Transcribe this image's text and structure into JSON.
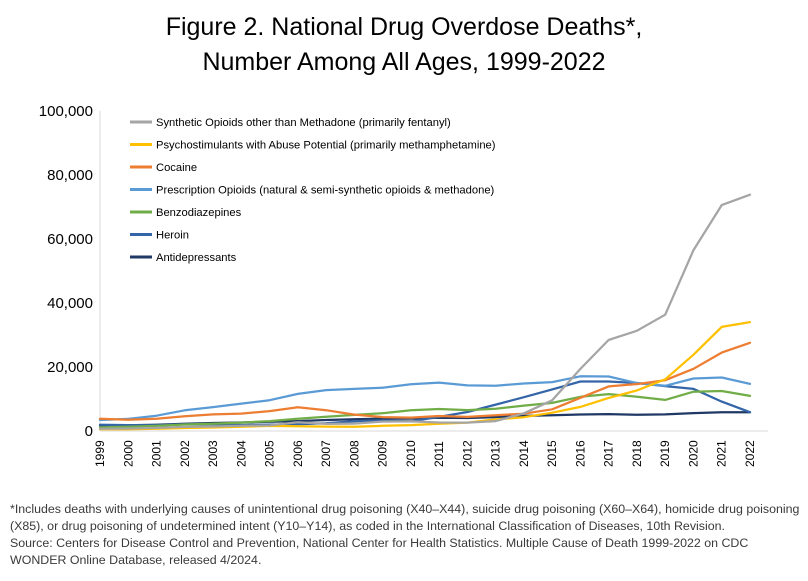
{
  "title": {
    "line1": "Figure 2. National Drug Overdose Deaths*,",
    "line2": "Number Among All Ages, 1999-2022"
  },
  "footnote": {
    "para1": "*Includes deaths with underlying causes of unintentional drug poisoning (X40–X44), suicide drug poisoning (X60–X64), homicide drug poisoning (X85), or drug poisoning of undetermined intent (Y10–Y14), as coded in the International Classification of Diseases, 10th Revision.",
    "para2": "Source: Centers for Disease Control and Prevention, National Center for Health Statistics. Multiple Cause of Death 1999-2022 on CDC WONDER Online Database, released 4/2024."
  },
  "chart_data": {
    "type": "line",
    "title": "Figure 2. National Drug Overdose Deaths*, Number Among All Ages, 1999-2022",
    "xlabel": "",
    "ylabel": "",
    "ylim": [
      0,
      100000
    ],
    "yticks": [
      0,
      20000,
      40000,
      60000,
      80000,
      100000
    ],
    "ytick_labels": [
      "0",
      "20,000",
      "40,000",
      "60,000",
      "80,000",
      "100,000"
    ],
    "grid": false,
    "legend_position": "inside-top-left",
    "axis_color": "#d9d9d9",
    "x": [
      1999,
      2000,
      2001,
      2002,
      2003,
      2004,
      2005,
      2006,
      2007,
      2008,
      2009,
      2010,
      2011,
      2012,
      2013,
      2014,
      2015,
      2016,
      2017,
      2018,
      2019,
      2020,
      2021,
      2022
    ],
    "series": [
      {
        "id": "synthetic-opioids",
        "name": "Synthetic Opioids other than Methadone (primarily fentanyl)",
        "color": "#a5a5a5",
        "values": [
          730,
          782,
          957,
          1295,
          1400,
          1664,
          1742,
          2707,
          2213,
          2306,
          2946,
          3007,
          2666,
          2628,
          3105,
          5544,
          9580,
          19413,
          28466,
          31335,
          36359,
          56516,
          70601,
          73838
        ]
      },
      {
        "id": "psychostimulants",
        "name": "Psychostimulants with Abuse Potential (primarily methamphetamine)",
        "color": "#ffc000",
        "values": [
          547,
          578,
          676,
          941,
          1101,
          1305,
          1608,
          1462,
          1378,
          1302,
          1632,
          1854,
          2266,
          2635,
          3627,
          4298,
          5716,
          7542,
          10333,
          12676,
          16167,
          23837,
          32537,
          34022
        ]
      },
      {
        "id": "cocaine",
        "name": "Cocaine",
        "color": "#ed7d31",
        "values": [
          3822,
          3544,
          3833,
          4599,
          5199,
          5443,
          6208,
          7448,
          6512,
          5129,
          4350,
          4183,
          4681,
          4404,
          4944,
          5415,
          6784,
          10375,
          13942,
          14666,
          15883,
          19447,
          24486,
          27569
        ]
      },
      {
        "id": "prescription-opioids",
        "name": "Prescription Opioids (natural & semi-synthetic opioids & methadone)",
        "color": "#5b9bd5",
        "values": [
          3442,
          3785,
          4770,
          6483,
          7461,
          8577,
          9612,
          11589,
          12796,
          13149,
          13523,
          14583,
          15140,
          14240,
          14145,
          14838,
          15281,
          17087,
          17029,
          14975,
          14139,
          16416,
          16706,
          14716
        ]
      },
      {
        "id": "benzodiazepines",
        "name": "Benzodiazepines",
        "color": "#70ad47",
        "values": [
          1135,
          1298,
          1594,
          2022,
          2248,
          2627,
          3084,
          3805,
          4441,
          5017,
          5567,
          6497,
          6872,
          6524,
          6973,
          7945,
          8791,
          10684,
          11537,
          10724,
          9711,
          12290,
          12499,
          10964
        ]
      },
      {
        "id": "heroin",
        "name": "Heroin",
        "color": "#3465a8",
        "values": [
          1960,
          1842,
          1779,
          2089,
          2080,
          1878,
          2009,
          2088,
          2399,
          3041,
          3278,
          3036,
          4397,
          5925,
          8257,
          10574,
          12989,
          15469,
          15482,
          14996,
          14019,
          13165,
          9173,
          5871
        ]
      },
      {
        "id": "antidepressants",
        "name": "Antidepressants",
        "color": "#203864",
        "values": [
          1749,
          1798,
          1966,
          2243,
          2512,
          2662,
          2862,
          3109,
          3435,
          3657,
          3875,
          3889,
          4153,
          4052,
          4351,
          4727,
          4951,
          5145,
          5269,
          5064,
          5175,
          5597,
          5859,
          5863
        ]
      }
    ]
  }
}
